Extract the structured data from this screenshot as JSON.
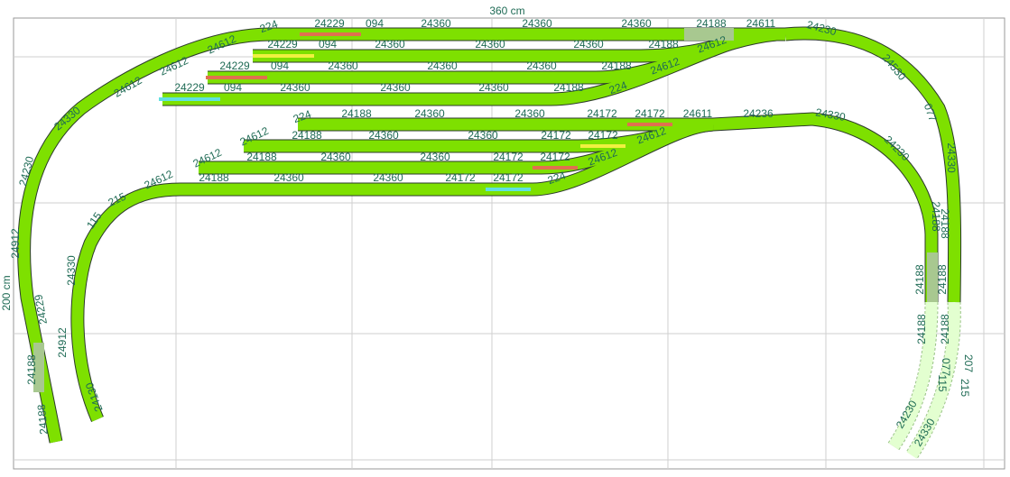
{
  "dimensions": {
    "width_label": "360 cm",
    "height_label": "200 cm"
  },
  "track_labels": [
    "224",
    "24229",
    "094",
    "24360",
    "24360",
    "24360",
    "24188",
    "24611",
    "24230",
    "24612",
    "24229",
    "094",
    "24360",
    "24360",
    "24360",
    "24188",
    "24612",
    "24612",
    "24229",
    "094",
    "24360",
    "24360",
    "24360",
    "24188",
    "24612",
    "24612",
    "24229",
    "094",
    "24360",
    "24360",
    "24360",
    "24188",
    "224",
    "224",
    "24188",
    "24360",
    "24360",
    "24172",
    "24172",
    "24611",
    "24236",
    "24330",
    "24612",
    "24188",
    "24360",
    "24360",
    "24172",
    "24172",
    "24612",
    "24612",
    "24188",
    "24360",
    "24360",
    "24172",
    "24172",
    "24612",
    "24612",
    "24188",
    "24360",
    "24360",
    "24172",
    "24172",
    "224",
    "24330",
    "24230",
    "24912",
    "24229",
    "24188",
    "24188",
    "215",
    "115",
    "24330",
    "24912",
    "24130",
    "24530",
    "077",
    "24330",
    "24230",
    "24188",
    "24188",
    "24188",
    "24188",
    "24188",
    "24188",
    "077",
    "207",
    "115",
    "215",
    "24230",
    "24330"
  ]
}
